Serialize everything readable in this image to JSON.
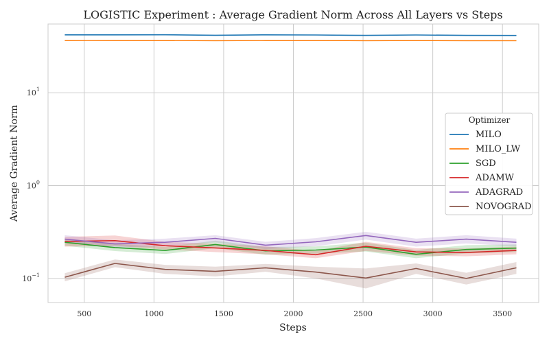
{
  "chart_data": {
    "type": "line",
    "title": "LOGISTIC Experiment : Average Gradient Norm Across All Layers vs Steps",
    "xlabel": "Steps",
    "ylabel": "Average Gradient Norm",
    "yscale": "log",
    "xlim": [
      240,
      3760
    ],
    "ylim": [
      0.055,
      55
    ],
    "xticks": [
      500,
      1000,
      1500,
      2000,
      2500,
      3000,
      3500
    ],
    "yticks": [
      {
        "value": 0.1,
        "base": "10",
        "exp": "−1"
      },
      {
        "value": 1,
        "base": "10",
        "exp": "0"
      },
      {
        "value": 10,
        "base": "10",
        "exp": "1"
      }
    ],
    "grid": true,
    "legend": {
      "title": "Optimizer",
      "placement": "center-right"
    },
    "x": [
      360,
      720,
      1080,
      1440,
      1800,
      2160,
      2520,
      2880,
      3240,
      3600
    ],
    "series": [
      {
        "name": "MILO",
        "color": "#1f77b4",
        "values": [
          42.0,
          42.0,
          42.1,
          41.6,
          42.0,
          41.9,
          41.5,
          41.9,
          41.5,
          41.4
        ],
        "lower": null,
        "upper": null
      },
      {
        "name": "MILO_LW",
        "color": "#ff7f0e",
        "values": [
          36.5,
          36.6,
          36.5,
          36.4,
          36.5,
          36.5,
          36.4,
          36.5,
          36.4,
          36.4
        ],
        "lower": null,
        "upper": null
      },
      {
        "name": "SGD",
        "color": "#2ca02c",
        "values": [
          0.245,
          0.215,
          0.2,
          0.232,
          0.198,
          0.202,
          0.218,
          0.182,
          0.205,
          0.212
        ],
        "lower": [
          0.225,
          0.197,
          0.183,
          0.212,
          0.18,
          0.185,
          0.195,
          0.165,
          0.186,
          0.192
        ],
        "upper": [
          0.265,
          0.236,
          0.218,
          0.255,
          0.218,
          0.221,
          0.243,
          0.202,
          0.228,
          0.232
        ]
      },
      {
        "name": "ADAMW",
        "color": "#d62728",
        "values": [
          0.25,
          0.255,
          0.225,
          0.213,
          0.2,
          0.18,
          0.222,
          0.193,
          0.19,
          0.2
        ],
        "lower": [
          0.22,
          0.225,
          0.205,
          0.192,
          0.182,
          0.165,
          0.198,
          0.176,
          0.173,
          0.182
        ],
        "upper": [
          0.28,
          0.29,
          0.248,
          0.236,
          0.222,
          0.198,
          0.248,
          0.212,
          0.21,
          0.22
        ]
      },
      {
        "name": "ADAGRAD",
        "color": "#9467bd",
        "values": [
          0.265,
          0.235,
          0.245,
          0.27,
          0.228,
          0.248,
          0.29,
          0.245,
          0.265,
          0.245
        ],
        "lower": [
          0.242,
          0.214,
          0.222,
          0.245,
          0.207,
          0.222,
          0.262,
          0.22,
          0.238,
          0.222
        ],
        "upper": [
          0.292,
          0.258,
          0.268,
          0.292,
          0.248,
          0.272,
          0.318,
          0.268,
          0.292,
          0.268
        ]
      },
      {
        "name": "NOVOGRAD",
        "color": "#8c564b",
        "values": [
          0.103,
          0.145,
          0.125,
          0.119,
          0.13,
          0.117,
          0.101,
          0.128,
          0.1,
          0.13
        ],
        "lower": [
          0.093,
          0.132,
          0.112,
          0.105,
          0.118,
          0.1,
          0.078,
          0.112,
          0.086,
          0.112
        ],
        "upper": [
          0.114,
          0.16,
          0.14,
          0.134,
          0.143,
          0.134,
          0.128,
          0.145,
          0.115,
          0.15
        ]
      }
    ]
  }
}
